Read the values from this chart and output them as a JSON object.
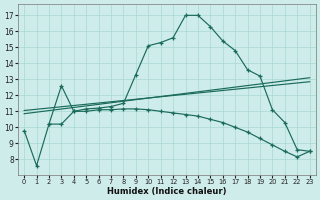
{
  "xlabel": "Humidex (Indice chaleur)",
  "bg_color": "#ceecea",
  "grid_color": "#a8d8d4",
  "line_color": "#1a6b5a",
  "xlim": [
    -0.5,
    23.5
  ],
  "ylim": [
    7.0,
    17.7
  ],
  "yticks": [
    8,
    9,
    10,
    11,
    12,
    13,
    14,
    15,
    16,
    17
  ],
  "xticks": [
    0,
    1,
    2,
    3,
    4,
    5,
    6,
    7,
    8,
    9,
    10,
    11,
    12,
    13,
    14,
    15,
    16,
    17,
    18,
    19,
    20,
    21,
    22,
    23
  ],
  "curve_main_x": [
    0,
    1,
    2,
    3,
    4,
    5,
    6,
    7,
    8,
    9,
    10,
    11,
    12,
    13,
    14,
    15,
    16,
    17,
    18,
    19,
    20,
    21,
    22,
    23
  ],
  "curve_main_y": [
    9.8,
    7.6,
    10.2,
    10.2,
    11.0,
    11.15,
    11.2,
    11.3,
    11.5,
    13.3,
    15.1,
    15.3,
    15.6,
    17.0,
    17.0,
    16.3,
    15.4,
    14.8,
    13.6,
    13.2,
    11.1,
    10.3,
    8.6,
    8.5
  ],
  "curve_decline_x": [
    2,
    3,
    4,
    5,
    6,
    7,
    8,
    9,
    10,
    11,
    12,
    13,
    14,
    15,
    16,
    17,
    18,
    19,
    20,
    21,
    22,
    23
  ],
  "curve_decline_y": [
    10.2,
    12.6,
    11.0,
    11.0,
    11.1,
    11.1,
    11.15,
    11.15,
    11.1,
    11.0,
    10.9,
    10.8,
    10.7,
    10.5,
    10.3,
    10.0,
    9.7,
    9.3,
    8.9,
    8.5,
    8.15,
    8.5
  ],
  "trend1_x": [
    0,
    23
  ],
  "trend1_y": [
    10.85,
    13.1
  ],
  "trend2_x": [
    0,
    23
  ],
  "trend2_y": [
    11.05,
    12.85
  ]
}
